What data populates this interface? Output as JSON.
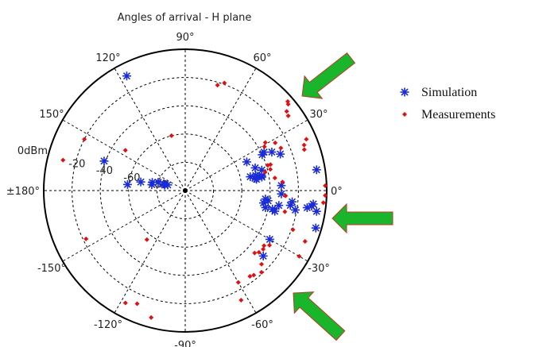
{
  "chart_data": {
    "type": "scatter",
    "subtype": "polar",
    "title": "Angles of arrival - H plane",
    "axis_unit_label": "0dBm",
    "r_ticks": [
      "-20",
      "-40",
      "-60",
      "-80"
    ],
    "r_values": [
      -20,
      -40,
      -60,
      -80
    ],
    "r_range": [
      -100,
      0
    ],
    "angle_ticks": [
      {
        "deg": 0,
        "label": "0°"
      },
      {
        "deg": 30,
        "label": "30°"
      },
      {
        "deg": 60,
        "label": "60°"
      },
      {
        "deg": 90,
        "label": "90°"
      },
      {
        "deg": 120,
        "label": "120°"
      },
      {
        "deg": 150,
        "label": "150°"
      },
      {
        "deg": 180,
        "label": "±180°"
      },
      {
        "deg": -150,
        "label": "-150°"
      },
      {
        "deg": -120,
        "label": "-120°"
      },
      {
        "deg": -90,
        "label": "-90°"
      },
      {
        "deg": -60,
        "label": "-60°"
      },
      {
        "deg": -30,
        "label": "-30°"
      }
    ],
    "grid": true,
    "legend_position": "right",
    "colors": {
      "simulation": "#1a2bd8",
      "measurements": "#e01010",
      "arrow_fill": "#19b52a",
      "arrow_stroke": "#c0392b"
    },
    "series": [
      {
        "name": "Simulation",
        "marker": "asterisk",
        "points": [
          [
            117,
            -9
          ],
          [
            160,
            -39
          ],
          [
            169,
            -68
          ],
          [
            162,
            -87
          ],
          [
            163,
            -84
          ],
          [
            165,
            -85
          ],
          [
            163,
            -80
          ],
          [
            166,
            -76
          ],
          [
            170,
            -76
          ],
          [
            174,
            -59
          ],
          [
            9,
            -6
          ],
          [
            24,
            -33
          ],
          [
            25,
            -40
          ],
          [
            25,
            -52
          ],
          [
            26,
            -38
          ],
          [
            21,
            -28
          ],
          [
            18,
            -48
          ],
          [
            15,
            -44
          ],
          [
            12,
            -49
          ],
          [
            11,
            -45
          ],
          [
            10,
            -45
          ],
          [
            9,
            -49
          ],
          [
            11,
            -48
          ],
          [
            12,
            -53
          ],
          [
            10,
            -50
          ],
          [
            3,
            -32
          ],
          [
            -2,
            -32
          ],
          [
            -6,
            -43
          ],
          [
            -7,
            -41
          ],
          [
            -9,
            -33
          ],
          [
            -10,
            -21
          ],
          [
            -9,
            -44
          ],
          [
            -12,
            -42
          ],
          [
            -13,
            -35
          ],
          [
            -12,
            -37
          ],
          [
            -6,
            -9
          ],
          [
            -7,
            -10
          ],
          [
            -8,
            -13
          ],
          [
            -9,
            -6
          ],
          [
            -16,
            -4
          ],
          [
            -6,
            -24
          ],
          [
            -8,
            -25
          ],
          [
            -30,
            -31
          ],
          [
            -40,
            -28
          ]
        ]
      },
      {
        "name": "Measurements",
        "marker": "diamond",
        "points": [
          [
            73,
            -22
          ],
          [
            70,
            -19
          ],
          [
            41,
            -4
          ],
          [
            40,
            -5
          ],
          [
            38,
            -9
          ],
          [
            36,
            -10
          ],
          [
            31,
            -34
          ],
          [
            29,
            -36
          ],
          [
            28,
            -28
          ],
          [
            24,
            -26
          ],
          [
            23,
            -7
          ],
          [
            21,
            -10
          ],
          [
            19,
            -11
          ],
          [
            17,
            -39
          ],
          [
            17,
            -37
          ],
          [
            13,
            -42
          ],
          [
            14,
            -38
          ],
          [
            8,
            -36
          ],
          [
            5,
            -31
          ],
          [
            2,
            -1
          ],
          [
            -2,
            -1
          ],
          [
            -5,
            -2
          ],
          [
            -3,
            -29
          ],
          [
            -12,
            -28
          ],
          [
            -20,
            -19
          ],
          [
            -23,
            -8
          ],
          [
            -33,
            -29
          ],
          [
            -35,
            -32
          ],
          [
            -37,
            -31
          ],
          [
            -40,
            -32
          ],
          [
            -42,
            -34
          ],
          [
            -44,
            -25
          ],
          [
            -47,
            -21
          ],
          [
            -51,
            -23
          ],
          [
            -53,
            -24
          ],
          [
            -60,
            -25
          ],
          [
            -63,
            -13
          ],
          [
            -30,
            -7
          ],
          [
            104,
            -60
          ],
          [
            146,
            -49
          ],
          [
            153,
            -20
          ],
          [
            166,
            -11
          ],
          [
            -154,
            -22
          ],
          [
            -128,
            -56
          ],
          [
            -118,
            -10
          ],
          [
            -113,
            -13
          ],
          [
            -105,
            -7
          ]
        ]
      }
    ]
  }
}
